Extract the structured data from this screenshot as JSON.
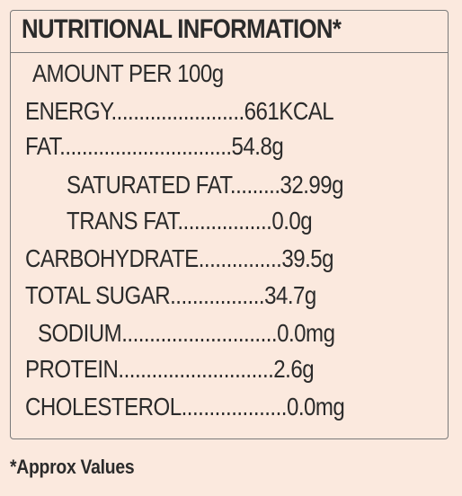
{
  "title": "NUTRITIONAL INFORMATION*",
  "amount_per": "AMOUNT PER 100g",
  "rows": [
    {
      "text": "ENERGY........................661KCAL"
    },
    {
      "text": "FAT...............................54.8g"
    },
    {
      "text": "SATURATED FAT.........32.99g"
    },
    {
      "text": "TRANS FAT.................0.0g"
    },
    {
      "text": "CARBOHYDRATE...............39.5g"
    },
    {
      "text": "TOTAL SUGAR.................34.7g"
    },
    {
      "text": "SODIUM............................0.0mg"
    },
    {
      "text": "PROTEIN............................2.6g"
    },
    {
      "text": "CHOLESTEROL...................0.0mg"
    }
  ],
  "footnote": "*Approx Values",
  "colors": {
    "background": "#fbe9de",
    "text": "#2b2b2b",
    "border": "#7a7a7a"
  }
}
